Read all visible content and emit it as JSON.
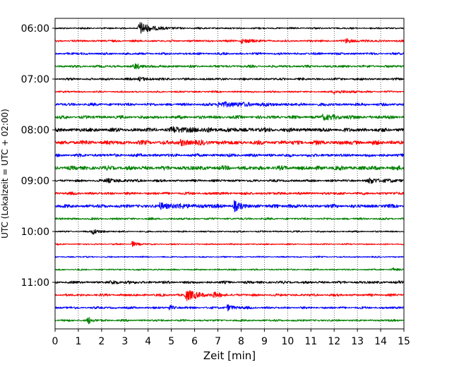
{
  "chart_data": {
    "type": "line",
    "title": "",
    "xlabel": "Zeit  [min]",
    "ylabel": "UTC (Lokalzeit = UTC + 02:00)",
    "xlim": [
      0,
      15
    ],
    "x_ticks": [
      "0",
      "1",
      "2",
      "3",
      "4",
      "5",
      "6",
      "7",
      "8",
      "9",
      "10",
      "11",
      "12",
      "13",
      "14",
      "15"
    ],
    "y_ticks": [
      "06:00",
      "07:00",
      "08:00",
      "09:00",
      "10:00",
      "11:00"
    ],
    "grid": "vertical dotted lines at each minute",
    "trace_interval_min": 15,
    "first_trace": "06:00",
    "colors_cycle": [
      "#000000",
      "#ff0000",
      "#0000ff",
      "#008000"
    ],
    "traces": [
      {
        "start": "06:00",
        "color": "#000000",
        "noise": 1.0,
        "events": [
          {
            "t": 3.6,
            "amp": 9,
            "width": 0.5
          }
        ]
      },
      {
        "start": "06:15",
        "color": "#ff0000",
        "noise": 1.2,
        "events": [
          {
            "t": 8.0,
            "amp": 3,
            "width": 0.4
          },
          {
            "t": 12.5,
            "amp": 2.5,
            "width": 0.4
          }
        ]
      },
      {
        "start": "06:30",
        "color": "#0000ff",
        "noise": 1.3,
        "events": []
      },
      {
        "start": "06:45",
        "color": "#008000",
        "noise": 1.4,
        "events": [
          {
            "t": 3.4,
            "amp": 3,
            "width": 0.4
          }
        ]
      },
      {
        "start": "07:00",
        "color": "#000000",
        "noise": 1.3,
        "events": [
          {
            "t": 3.6,
            "amp": 3,
            "width": 0.3
          }
        ]
      },
      {
        "start": "07:15",
        "color": "#ff0000",
        "noise": 1.0,
        "events": [
          {
            "t": 12.0,
            "amp": 2.5,
            "width": 0.6
          }
        ]
      },
      {
        "start": "07:30",
        "color": "#0000ff",
        "noise": 1.6,
        "events": [
          {
            "t": 7.0,
            "amp": 3,
            "width": 1.5
          }
        ]
      },
      {
        "start": "07:45",
        "color": "#008000",
        "noise": 1.8,
        "events": [
          {
            "t": 11.5,
            "amp": 3,
            "width": 0.8
          }
        ]
      },
      {
        "start": "08:00",
        "color": "#000000",
        "noise": 2.2,
        "events": [
          {
            "t": 5.0,
            "amp": 2.5,
            "width": 1.5
          }
        ]
      },
      {
        "start": "08:15",
        "color": "#ff0000",
        "noise": 2.4,
        "events": [
          {
            "t": 5.4,
            "amp": 3,
            "width": 0.5
          }
        ]
      },
      {
        "start": "08:30",
        "color": "#0000ff",
        "noise": 1.8,
        "events": []
      },
      {
        "start": "08:45",
        "color": "#008000",
        "noise": 2.4,
        "events": []
      },
      {
        "start": "09:00",
        "color": "#000000",
        "noise": 1.4,
        "events": [
          {
            "t": 2.2,
            "amp": 2.5,
            "width": 0.6
          },
          {
            "t": 13.5,
            "amp": 3,
            "width": 0.8
          }
        ]
      },
      {
        "start": "09:15",
        "color": "#ff0000",
        "noise": 1.6,
        "events": []
      },
      {
        "start": "09:30",
        "color": "#0000ff",
        "noise": 2.0,
        "events": [
          {
            "t": 4.5,
            "amp": 3,
            "width": 1.2
          },
          {
            "t": 7.7,
            "amp": 7,
            "width": 0.2
          },
          {
            "t": 10.0,
            "amp": 3,
            "width": 0.1
          }
        ]
      },
      {
        "start": "09:45",
        "color": "#008000",
        "noise": 1.2,
        "events": []
      },
      {
        "start": "10:00",
        "color": "#000000",
        "noise": 0.9,
        "events": [
          {
            "t": 1.6,
            "amp": 4,
            "width": 0.3
          }
        ]
      },
      {
        "start": "10:15",
        "color": "#ff0000",
        "noise": 0.8,
        "events": [
          {
            "t": 3.3,
            "amp": 4,
            "width": 0.2
          }
        ]
      },
      {
        "start": "10:30",
        "color": "#0000ff",
        "noise": 0.8,
        "events": []
      },
      {
        "start": "10:45",
        "color": "#008000",
        "noise": 0.9,
        "events": [
          {
            "t": 14.5,
            "amp": 2.5,
            "width": 0.2
          }
        ]
      },
      {
        "start": "11:00",
        "color": "#000000",
        "noise": 1.5,
        "events": [
          {
            "t": 2.4,
            "amp": 2,
            "width": 0.5
          }
        ]
      },
      {
        "start": "11:15",
        "color": "#ff0000",
        "noise": 1.4,
        "events": [
          {
            "t": 5.6,
            "amp": 8,
            "width": 0.5
          },
          {
            "t": 6.8,
            "amp": 3,
            "width": 0.2
          }
        ]
      },
      {
        "start": "11:30",
        "color": "#0000ff",
        "noise": 1.3,
        "events": [
          {
            "t": 4.9,
            "amp": 3,
            "width": 0.2
          },
          {
            "t": 7.4,
            "amp": 4,
            "width": 0.3
          }
        ]
      },
      {
        "start": "11:45",
        "color": "#008000",
        "noise": 1.2,
        "events": [
          {
            "t": 1.4,
            "amp": 6,
            "width": 0.15
          }
        ]
      }
    ]
  }
}
